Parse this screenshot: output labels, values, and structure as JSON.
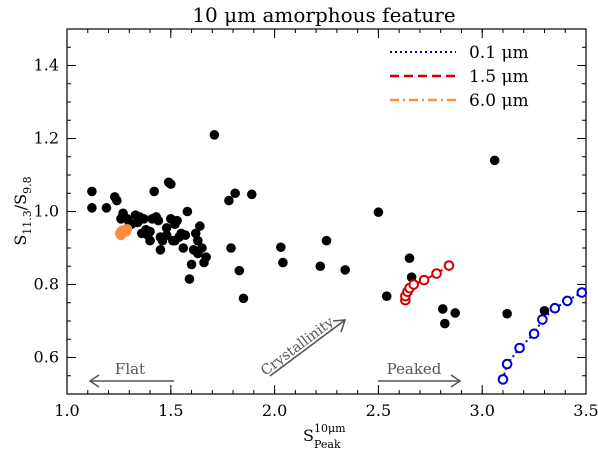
{
  "chart_data": {
    "type": "scatter",
    "title": "10 μm amorphous feature",
    "xlabel": {
      "main": "S",
      "sup": "10μm",
      "sub": "Peak"
    },
    "ylabel": {
      "s1": "S",
      "sub1": "11.3",
      "slash": "/S",
      "sub2": "9.8"
    },
    "xlim": [
      1.0,
      3.5
    ],
    "ylim": [
      0.5,
      1.5
    ],
    "x_ticks": [
      1.0,
      1.5,
      2.0,
      2.5,
      3.0,
      3.5
    ],
    "x_tick_labels": [
      "1.0",
      "1.5",
      "2.0",
      "2.5",
      "3.0",
      "3.5"
    ],
    "y_ticks": [
      0.6,
      0.8,
      1.0,
      1.2,
      1.4
    ],
    "y_tick_labels": [
      "0.6",
      "0.8",
      "1.0",
      "1.2",
      "1.4"
    ],
    "grid": false,
    "legend_placement": "top-right",
    "legend": [
      {
        "label": "0.1 μm",
        "color": "#0000cc",
        "style": "dotted"
      },
      {
        "label": "1.5 μm",
        "color": "#cc0000",
        "style": "dashed"
      },
      {
        "label": "6.0 μm",
        "color": "#ff8c40",
        "style": "dash-dot"
      }
    ],
    "observed": {
      "color": "#000000",
      "points": [
        [
          1.12,
          1.055
        ],
        [
          1.12,
          1.01
        ],
        [
          1.19,
          1.01
        ],
        [
          1.23,
          1.04
        ],
        [
          1.24,
          1.03
        ],
        [
          1.26,
          0.98
        ],
        [
          1.27,
          0.995
        ],
        [
          1.29,
          0.98
        ],
        [
          1.3,
          0.97
        ],
        [
          1.31,
          0.965
        ],
        [
          1.33,
          0.99
        ],
        [
          1.34,
          0.97
        ],
        [
          1.35,
          0.985
        ],
        [
          1.36,
          0.94
        ],
        [
          1.37,
          0.98
        ],
        [
          1.38,
          0.95
        ],
        [
          1.39,
          0.935
        ],
        [
          1.4,
          0.945
        ],
        [
          1.4,
          0.92
        ],
        [
          1.41,
          0.98
        ],
        [
          1.42,
          1.055
        ],
        [
          1.43,
          0.985
        ],
        [
          1.44,
          0.975
        ],
        [
          1.45,
          0.895
        ],
        [
          1.45,
          0.93
        ],
        [
          1.46,
          0.92
        ],
        [
          1.48,
          0.955
        ],
        [
          1.48,
          0.935
        ],
        [
          1.49,
          1.08
        ],
        [
          1.5,
          1.075
        ],
        [
          1.5,
          0.98
        ],
        [
          1.51,
          0.92
        ],
        [
          1.52,
          0.965
        ],
        [
          1.52,
          0.92
        ],
        [
          1.53,
          0.975
        ],
        [
          1.54,
          0.93
        ],
        [
          1.55,
          0.94
        ],
        [
          1.56,
          0.9
        ],
        [
          1.57,
          0.935
        ],
        [
          1.58,
          1.0
        ],
        [
          1.59,
          0.815
        ],
        [
          1.6,
          0.855
        ],
        [
          1.61,
          0.895
        ],
        [
          1.62,
          0.94
        ],
        [
          1.63,
          0.92
        ],
        [
          1.63,
          0.885
        ],
        [
          1.64,
          0.96
        ],
        [
          1.65,
          0.9
        ],
        [
          1.66,
          0.86
        ],
        [
          1.67,
          0.875
        ],
        [
          1.71,
          1.21
        ],
        [
          1.78,
          1.03
        ],
        [
          1.79,
          0.9
        ],
        [
          1.81,
          1.05
        ],
        [
          1.83,
          0.838
        ],
        [
          1.85,
          0.762
        ],
        [
          1.89,
          1.047
        ],
        [
          2.03,
          0.902
        ],
        [
          2.04,
          0.86
        ],
        [
          2.22,
          0.85
        ],
        [
          2.25,
          0.92
        ],
        [
          2.34,
          0.84
        ],
        [
          2.5,
          0.998
        ],
        [
          2.54,
          0.768
        ],
        [
          2.65,
          0.872
        ],
        [
          2.66,
          0.82
        ],
        [
          2.81,
          0.733
        ],
        [
          2.82,
          0.693
        ],
        [
          2.87,
          0.722
        ],
        [
          3.06,
          1.14
        ],
        [
          3.12,
          0.72
        ],
        [
          3.3,
          0.728
        ]
      ]
    },
    "model_0.1um": {
      "color": "#0000cc",
      "points": [
        [
          3.1,
          0.54
        ],
        [
          3.12,
          0.582
        ],
        [
          3.18,
          0.626
        ],
        [
          3.25,
          0.665
        ],
        [
          3.29,
          0.704
        ],
        [
          3.35,
          0.735
        ],
        [
          3.41,
          0.755
        ],
        [
          3.48,
          0.778
        ]
      ]
    },
    "model_1.5um": {
      "color": "#cc0000",
      "points": [
        [
          2.63,
          0.757
        ],
        [
          2.63,
          0.768
        ],
        [
          2.64,
          0.78
        ],
        [
          2.65,
          0.79
        ],
        [
          2.67,
          0.8
        ],
        [
          2.72,
          0.812
        ],
        [
          2.78,
          0.83
        ],
        [
          2.84,
          0.852
        ]
      ]
    },
    "model_6.0um": {
      "color": "#ff8c40",
      "points": [
        [
          1.255,
          0.94
        ],
        [
          1.26,
          0.945
        ],
        [
          1.265,
          0.948
        ],
        [
          1.27,
          0.943
        ],
        [
          1.28,
          0.95
        ],
        [
          1.285,
          0.945
        ],
        [
          1.29,
          0.952
        ],
        [
          1.26,
          0.935
        ]
      ]
    },
    "annotations": {
      "flat": "Flat",
      "crystallinity": "Crystallinity",
      "peaked": "Peaked"
    }
  }
}
